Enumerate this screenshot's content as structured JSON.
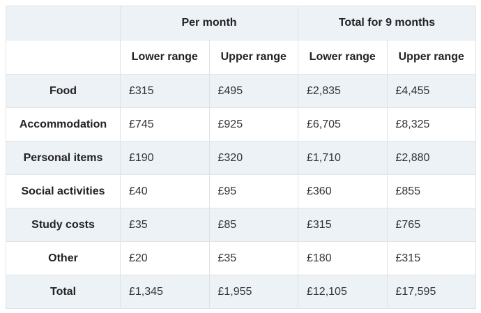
{
  "chart_data": {
    "type": "table",
    "title": "",
    "currency": "GBP",
    "column_groups": [
      {
        "label": "Per month",
        "span": 2
      },
      {
        "label": "Total for 9 months",
        "span": 2
      }
    ],
    "sub_headers": [
      "Lower range",
      "Upper range",
      "Lower range",
      "Upper range"
    ],
    "rows": [
      {
        "label": "Food",
        "values": [
          "£315",
          "£495",
          "£2,835",
          "£4,455"
        ]
      },
      {
        "label": "Accommodation",
        "values": [
          "£745",
          "£925",
          "£6,705",
          "£8,325"
        ]
      },
      {
        "label": "Personal items",
        "values": [
          "£190",
          "£320",
          "£1,710",
          "£2,880"
        ]
      },
      {
        "label": "Social activities",
        "values": [
          "£40",
          "£95",
          "£360",
          "£855"
        ]
      },
      {
        "label": "Study costs",
        "values": [
          "£35",
          "£85",
          "£315",
          "£765"
        ]
      },
      {
        "label": "Other",
        "values": [
          "£20",
          "£35",
          "£180",
          "£315"
        ]
      },
      {
        "label": "Total",
        "values": [
          "£1,345",
          "£1,955",
          "£12,105",
          "£17,595"
        ]
      }
    ]
  },
  "colors": {
    "shaded_row_bg": "#edf2f6",
    "plain_row_bg": "#ffffff",
    "border": "#dfe3e6",
    "header_text": "#222222",
    "value_text": "#333333",
    "page_bg": "#ffffff"
  }
}
